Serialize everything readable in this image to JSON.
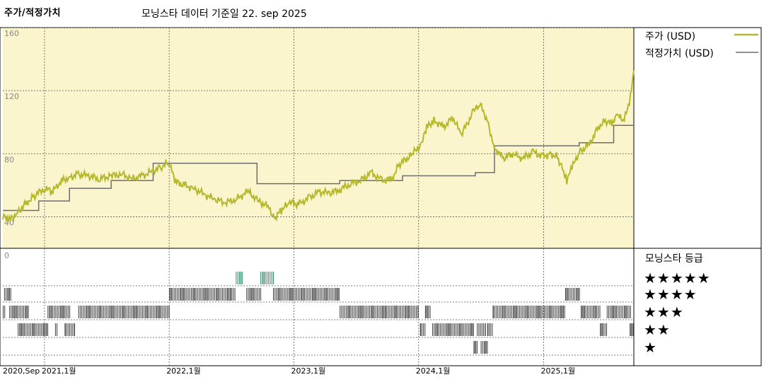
{
  "header": {
    "title": "주가/적정가치",
    "subtitle": "모닝스타 데이터 기준일 22. sep 2025"
  },
  "colors": {
    "plot_bg": "#faf5cc",
    "price_line": "#b5b82c",
    "fair_value_line": "#6e6e6e",
    "rating_bar": "#3a3a3a",
    "rating_bar_5": "#3f8f6f"
  },
  "chart_data": {
    "type": "line",
    "title": "주가/적정가치",
    "subtitle": "모닝스타 데이터 기준일 22. sep 2025",
    "ylim": [
      20,
      160
    ],
    "y_ticks": [
      {
        "value": 160,
        "label": "160"
      },
      {
        "value": 120,
        "label": "120"
      },
      {
        "value": 80,
        "label": "80"
      },
      {
        "value": 40,
        "label": "40"
      }
    ],
    "xlim": [
      "2020-09-01",
      "2025-09-22"
    ],
    "x_ticks": [
      {
        "date": "2020-09-01",
        "label": "2020,Sep"
      },
      {
        "date": "2021-01-01",
        "label": "2021,1월"
      },
      {
        "date": "2022-01-01",
        "label": "2022,1월"
      },
      {
        "date": "2023-01-01",
        "label": "2023,1월"
      },
      {
        "date": "2024-01-01",
        "label": "2024,1월"
      },
      {
        "date": "2025-01-01",
        "label": "2025,1월"
      }
    ],
    "legend": {
      "position": "right",
      "entries": [
        "주가 (USD)",
        "적정가치 (USD)"
      ]
    },
    "series": [
      {
        "name": "주가 (USD)",
        "points": [
          [
            "2020-09-01",
            40
          ],
          [
            "2020-09-20",
            38
          ],
          [
            "2020-10-15",
            43
          ],
          [
            "2020-11-10",
            49
          ],
          [
            "2020-12-01",
            53
          ],
          [
            "2021-01-01",
            58
          ],
          [
            "2021-01-25",
            56
          ],
          [
            "2021-02-20",
            63
          ],
          [
            "2021-03-15",
            65
          ],
          [
            "2021-04-10",
            67
          ],
          [
            "2021-05-10",
            66
          ],
          [
            "2021-06-10",
            64
          ],
          [
            "2021-07-15",
            66
          ],
          [
            "2021-08-15",
            67
          ],
          [
            "2021-09-15",
            64
          ],
          [
            "2021-10-15",
            66
          ],
          [
            "2021-11-15",
            69
          ],
          [
            "2021-12-10",
            72
          ],
          [
            "2021-12-31",
            74
          ],
          [
            "2022-01-20",
            62
          ],
          [
            "2022-02-15",
            60
          ],
          [
            "2022-03-15",
            58
          ],
          [
            "2022-04-15",
            54
          ],
          [
            "2022-05-15",
            51
          ],
          [
            "2022-06-15",
            49
          ],
          [
            "2022-07-15",
            51
          ],
          [
            "2022-08-20",
            56
          ],
          [
            "2022-09-20",
            50
          ],
          [
            "2022-10-20",
            46
          ],
          [
            "2022-11-05",
            39
          ],
          [
            "2022-11-25",
            44
          ],
          [
            "2022-12-20",
            49
          ],
          [
            "2023-01-15",
            48
          ],
          [
            "2023-02-15",
            52
          ],
          [
            "2023-03-15",
            56
          ],
          [
            "2023-04-15",
            55
          ],
          [
            "2023-05-15",
            57
          ],
          [
            "2023-06-15",
            61
          ],
          [
            "2023-07-15",
            63
          ],
          [
            "2023-08-15",
            68
          ],
          [
            "2023-09-15",
            63
          ],
          [
            "2023-10-15",
            64
          ],
          [
            "2023-11-05",
            73
          ],
          [
            "2023-12-10",
            79
          ],
          [
            "2024-01-10",
            86
          ],
          [
            "2024-01-25",
            97
          ],
          [
            "2024-02-15",
            101
          ],
          [
            "2024-03-15",
            97
          ],
          [
            "2024-04-10",
            103
          ],
          [
            "2024-05-05",
            92
          ],
          [
            "2024-06-10",
            107
          ],
          [
            "2024-06-30",
            111
          ],
          [
            "2024-07-20",
            101
          ],
          [
            "2024-08-10",
            84
          ],
          [
            "2024-09-05",
            77
          ],
          [
            "2024-10-01",
            80
          ],
          [
            "2024-11-01",
            77
          ],
          [
            "2024-12-01",
            81
          ],
          [
            "2024-12-31",
            78
          ],
          [
            "2025-01-20",
            80
          ],
          [
            "2025-02-10",
            78
          ],
          [
            "2025-02-25",
            71
          ],
          [
            "2025-03-10",
            63
          ],
          [
            "2025-03-25",
            71
          ],
          [
            "2025-04-15",
            81
          ],
          [
            "2025-05-15",
            86
          ],
          [
            "2025-06-10",
            97
          ],
          [
            "2025-07-01",
            101
          ],
          [
            "2025-07-20",
            99
          ],
          [
            "2025-08-05",
            104
          ],
          [
            "2025-08-25",
            101
          ],
          [
            "2025-09-12",
            116
          ],
          [
            "2025-09-22",
            133
          ]
        ]
      },
      {
        "name": "적정가치 (USD)",
        "points": [
          [
            "2020-09-01",
            44
          ],
          [
            "2020-12-15",
            44
          ],
          [
            "2020-12-15",
            50
          ],
          [
            "2021-03-15",
            50
          ],
          [
            "2021-03-15",
            58
          ],
          [
            "2021-07-15",
            58
          ],
          [
            "2021-07-15",
            63
          ],
          [
            "2021-11-15",
            63
          ],
          [
            "2021-11-15",
            74
          ],
          [
            "2022-09-15",
            74
          ],
          [
            "2022-09-15",
            61
          ],
          [
            "2023-05-15",
            61
          ],
          [
            "2023-05-15",
            63
          ],
          [
            "2023-11-15",
            63
          ],
          [
            "2023-11-15",
            66
          ],
          [
            "2024-06-15",
            66
          ],
          [
            "2024-06-15",
            68
          ],
          [
            "2024-08-10",
            68
          ],
          [
            "2024-08-10",
            85
          ],
          [
            "2025-04-15",
            85
          ],
          [
            "2025-04-15",
            87
          ],
          [
            "2025-07-25",
            87
          ],
          [
            "2025-07-25",
            98
          ],
          [
            "2025-09-22",
            98
          ]
        ]
      }
    ],
    "rating_panel": {
      "label": "모닝스타 등급",
      "y_tick_label": "0",
      "levels": [
        "★★★★★",
        "★★★★",
        "★★★",
        "★★",
        "★"
      ],
      "periods": [
        {
          "rating": 5,
          "start": "2022-07-15",
          "end": "2022-08-05"
        },
        {
          "rating": 5,
          "start": "2022-09-25",
          "end": "2022-11-01"
        },
        {
          "rating": 4,
          "start": "2020-09-05",
          "end": "2020-09-25"
        },
        {
          "rating": 4,
          "start": "2022-01-01",
          "end": "2022-07-15"
        },
        {
          "rating": 4,
          "start": "2022-08-15",
          "end": "2022-09-25"
        },
        {
          "rating": 4,
          "start": "2022-11-01",
          "end": "2023-05-15"
        },
        {
          "rating": 4,
          "start": "2025-03-05",
          "end": "2025-04-15"
        },
        {
          "rating": 3,
          "start": "2020-09-01",
          "end": "2020-09-10"
        },
        {
          "rating": 3,
          "start": "2020-09-20",
          "end": "2020-11-15"
        },
        {
          "rating": 3,
          "start": "2021-01-10",
          "end": "2021-03-15"
        },
        {
          "rating": 3,
          "start": "2021-04-10",
          "end": "2021-12-31"
        },
        {
          "rating": 3,
          "start": "2023-05-15",
          "end": "2023-12-31"
        },
        {
          "rating": 3,
          "start": "2024-01-20",
          "end": "2024-02-05"
        },
        {
          "rating": 3,
          "start": "2024-08-05",
          "end": "2025-03-05"
        },
        {
          "rating": 3,
          "start": "2025-04-20",
          "end": "2025-06-15"
        },
        {
          "rating": 3,
          "start": "2025-07-05",
          "end": "2025-09-15"
        },
        {
          "rating": 2,
          "start": "2020-10-15",
          "end": "2021-01-10"
        },
        {
          "rating": 2,
          "start": "2021-02-01",
          "end": "2021-02-10"
        },
        {
          "rating": 2,
          "start": "2021-03-01",
          "end": "2021-04-01"
        },
        {
          "rating": 2,
          "start": "2024-01-05",
          "end": "2024-01-20"
        },
        {
          "rating": 2,
          "start": "2024-02-10",
          "end": "2024-06-10"
        },
        {
          "rating": 2,
          "start": "2024-06-20",
          "end": "2024-07-15"
        },
        {
          "rating": 2,
          "start": "2024-07-20",
          "end": "2024-08-05"
        },
        {
          "rating": 2,
          "start": "2025-06-15",
          "end": "2025-07-05"
        },
        {
          "rating": 2,
          "start": "2025-09-10",
          "end": "2025-09-22"
        },
        {
          "rating": 1,
          "start": "2024-06-10",
          "end": "2024-06-20"
        },
        {
          "rating": 1,
          "start": "2024-07-01",
          "end": "2024-07-20"
        }
      ]
    }
  }
}
